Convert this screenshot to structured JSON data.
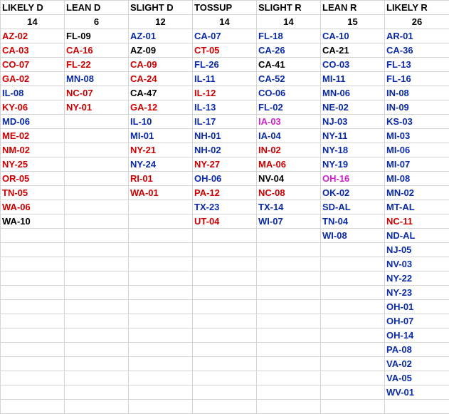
{
  "columns": [
    {
      "header": "LIKELY D",
      "count": "14",
      "districts": [
        {
          "code": "AZ-02",
          "color": "red"
        },
        {
          "code": "CA-03",
          "color": "red"
        },
        {
          "code": "CO-07",
          "color": "red"
        },
        {
          "code": "GA-02",
          "color": "red"
        },
        {
          "code": "IL-08",
          "color": "blue"
        },
        {
          "code": "KY-06",
          "color": "red"
        },
        {
          "code": "MD-06",
          "color": "blue"
        },
        {
          "code": "ME-02",
          "color": "red"
        },
        {
          "code": "NM-02",
          "color": "red"
        },
        {
          "code": "NY-25",
          "color": "red"
        },
        {
          "code": "OR-05",
          "color": "red"
        },
        {
          "code": "TN-05",
          "color": "red"
        },
        {
          "code": "WA-06",
          "color": "red"
        },
        {
          "code": "WA-10",
          "color": "black"
        }
      ]
    },
    {
      "header": "LEAN D",
      "count": "6",
      "districts": [
        {
          "code": "FL-09",
          "color": "black"
        },
        {
          "code": "CA-16",
          "color": "red"
        },
        {
          "code": "FL-22",
          "color": "red"
        },
        {
          "code": "MN-08",
          "color": "blue"
        },
        {
          "code": "NC-07",
          "color": "red"
        },
        {
          "code": "NY-01",
          "color": "red"
        }
      ]
    },
    {
      "header": "SLIGHT D",
      "count": "12",
      "districts": [
        {
          "code": "AZ-01",
          "color": "blue"
        },
        {
          "code": "AZ-09",
          "color": "black"
        },
        {
          "code": "CA-09",
          "color": "red"
        },
        {
          "code": "CA-24",
          "color": "red"
        },
        {
          "code": "CA-47",
          "color": "black"
        },
        {
          "code": "GA-12",
          "color": "red"
        },
        {
          "code": "IL-10",
          "color": "blue"
        },
        {
          "code": "MI-01",
          "color": "blue"
        },
        {
          "code": "NY-21",
          "color": "red"
        },
        {
          "code": "NY-24",
          "color": "blue"
        },
        {
          "code": "RI-01",
          "color": "red"
        },
        {
          "code": "WA-01",
          "color": "red"
        }
      ]
    },
    {
      "header": "TOSSUP",
      "count": "14",
      "districts": [
        {
          "code": "CA-07",
          "color": "blue"
        },
        {
          "code": "CT-05",
          "color": "red"
        },
        {
          "code": "FL-26",
          "color": "blue"
        },
        {
          "code": "IL-11",
          "color": "blue"
        },
        {
          "code": "IL-12",
          "color": "red"
        },
        {
          "code": "IL-13",
          "color": "blue"
        },
        {
          "code": "IL-17",
          "color": "blue"
        },
        {
          "code": "NH-01",
          "color": "blue"
        },
        {
          "code": "NH-02",
          "color": "blue"
        },
        {
          "code": "NY-27",
          "color": "red"
        },
        {
          "code": "OH-06",
          "color": "blue"
        },
        {
          "code": "PA-12",
          "color": "red"
        },
        {
          "code": "TX-23",
          "color": "blue"
        },
        {
          "code": "UT-04",
          "color": "red"
        }
      ]
    },
    {
      "header": "SLIGHT R",
      "count": "14",
      "districts": [
        {
          "code": "FL-18",
          "color": "blue"
        },
        {
          "code": "CA-26",
          "color": "blue"
        },
        {
          "code": "CA-41",
          "color": "black"
        },
        {
          "code": "CA-52",
          "color": "blue"
        },
        {
          "code": "CO-06",
          "color": "blue"
        },
        {
          "code": "FL-02",
          "color": "blue"
        },
        {
          "code": "IA-03",
          "color": "magenta"
        },
        {
          "code": "IA-04",
          "color": "blue"
        },
        {
          "code": "IN-02",
          "color": "red"
        },
        {
          "code": "MA-06",
          "color": "red"
        },
        {
          "code": "NV-04",
          "color": "black"
        },
        {
          "code": "NC-08",
          "color": "red"
        },
        {
          "code": "TX-14",
          "color": "blue"
        },
        {
          "code": "WI-07",
          "color": "blue"
        }
      ]
    },
    {
      "header": "LEAN R",
      "count": "15",
      "districts": [
        {
          "code": "CA-10",
          "color": "blue"
        },
        {
          "code": "CA-21",
          "color": "black"
        },
        {
          "code": "CO-03",
          "color": "blue"
        },
        {
          "code": "MI-11",
          "color": "blue"
        },
        {
          "code": "MN-06",
          "color": "blue"
        },
        {
          "code": "NE-02",
          "color": "blue"
        },
        {
          "code": "NJ-03",
          "color": "blue"
        },
        {
          "code": "NY-11",
          "color": "blue"
        },
        {
          "code": "NY-18",
          "color": "blue"
        },
        {
          "code": "NY-19",
          "color": "blue"
        },
        {
          "code": "OH-16",
          "color": "magenta"
        },
        {
          "code": "OK-02",
          "color": "blue"
        },
        {
          "code": "SD-AL",
          "color": "blue"
        },
        {
          "code": "TN-04",
          "color": "blue"
        },
        {
          "code": "WI-08",
          "color": "blue"
        }
      ]
    },
    {
      "header": "LIKELY R",
      "count": "26",
      "districts": [
        {
          "code": "AR-01",
          "color": "blue"
        },
        {
          "code": "CA-36",
          "color": "blue"
        },
        {
          "code": "FL-13",
          "color": "blue"
        },
        {
          "code": "FL-16",
          "color": "blue"
        },
        {
          "code": "IN-08",
          "color": "blue"
        },
        {
          "code": "IN-09",
          "color": "blue"
        },
        {
          "code": "KS-03",
          "color": "blue"
        },
        {
          "code": "MI-03",
          "color": "blue"
        },
        {
          "code": "MI-06",
          "color": "blue"
        },
        {
          "code": "MI-07",
          "color": "blue"
        },
        {
          "code": "MI-08",
          "color": "blue"
        },
        {
          "code": "MN-02",
          "color": "blue"
        },
        {
          "code": "MT-AL",
          "color": "blue"
        },
        {
          "code": "NC-11",
          "color": "red"
        },
        {
          "code": "ND-AL",
          "color": "blue"
        },
        {
          "code": "NJ-05",
          "color": "blue"
        },
        {
          "code": "NV-03",
          "color": "blue"
        },
        {
          "code": "NY-22",
          "color": "blue"
        },
        {
          "code": "NY-23",
          "color": "blue"
        },
        {
          "code": "OH-01",
          "color": "blue"
        },
        {
          "code": "OH-07",
          "color": "blue"
        },
        {
          "code": "OH-14",
          "color": "blue"
        },
        {
          "code": "PA-08",
          "color": "blue"
        },
        {
          "code": "VA-02",
          "color": "blue"
        },
        {
          "code": "VA-05",
          "color": "blue"
        },
        {
          "code": "WV-01",
          "color": "blue"
        }
      ]
    }
  ],
  "colors": {
    "red": "#cc0000",
    "blue": "#0a2aa8",
    "black": "#000000",
    "magenta": "#cc22cc",
    "grid": "#d4d4d4"
  }
}
